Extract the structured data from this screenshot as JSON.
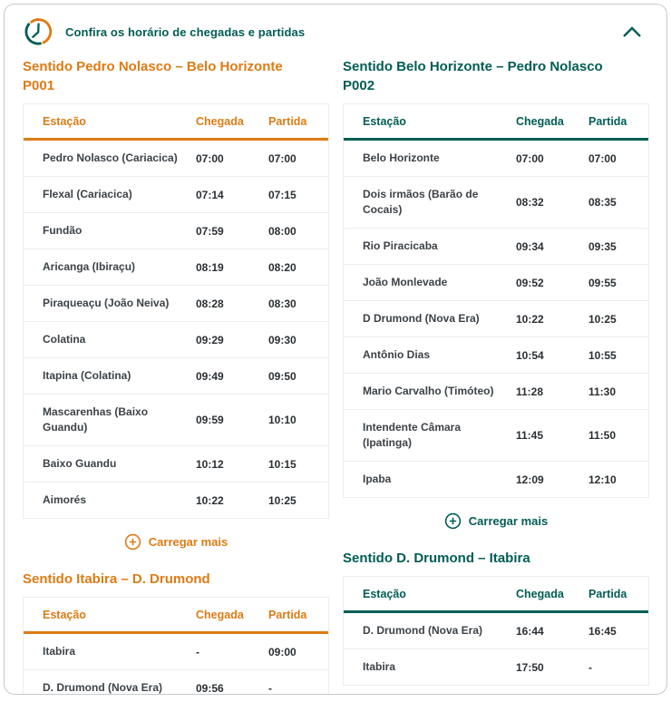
{
  "colors": {
    "orange": "#DD7B14",
    "teal": "#015D54"
  },
  "header": {
    "title": "Confira os horário de chegadas e partidas"
  },
  "table_columns": {
    "station": "Estação",
    "arrival": "Chegada",
    "departure": "Partida"
  },
  "load_more_label": "Carregar mais",
  "sections": [
    {
      "id": "p001",
      "theme": "orange",
      "column": "left",
      "title": "Sentido Pedro Nolasco – Belo Horizonte",
      "subtitle": "P001",
      "load_more": true,
      "rows": [
        {
          "station": "Pedro Nolasco (Cariacica)",
          "arrival": "07:00",
          "departure": "07:00"
        },
        {
          "station": "Flexal (Cariacica)",
          "arrival": "07:14",
          "departure": "07:15"
        },
        {
          "station": "Fundão",
          "arrival": "07:59",
          "departure": "08:00"
        },
        {
          "station": "Aricanga (Ibiraçu)",
          "arrival": "08:19",
          "departure": "08:20"
        },
        {
          "station": "Piraqueaçu (João Neiva)",
          "arrival": "08:28",
          "departure": "08:30"
        },
        {
          "station": "Colatina",
          "arrival": "09:29",
          "departure": "09:30"
        },
        {
          "station": "Itapina (Colatina)",
          "arrival": "09:49",
          "departure": "09:50"
        },
        {
          "station": "Mascarenhas (Baixo Guandu)",
          "arrival": "09:59",
          "departure": "10:10"
        },
        {
          "station": "Baixo Guandu",
          "arrival": "10:12",
          "departure": "10:15"
        },
        {
          "station": "Aimorés",
          "arrival": "10:22",
          "departure": "10:25"
        }
      ]
    },
    {
      "id": "p002",
      "theme": "teal",
      "column": "right",
      "title": "Sentido Belo Horizonte – Pedro Nolasco",
      "subtitle": "P002",
      "load_more": true,
      "rows": [
        {
          "station": "Belo Horizonte",
          "arrival": "07:00",
          "departure": "07:00"
        },
        {
          "station": "Dois irmãos (Barão de Cocais)",
          "arrival": "08:32",
          "departure": "08:35"
        },
        {
          "station": "Rio Piracicaba",
          "arrival": "09:34",
          "departure": "09:35"
        },
        {
          "station": "João Monlevade",
          "arrival": "09:52",
          "departure": "09:55"
        },
        {
          "station": "D Drumond (Nova Era)",
          "arrival": "10:22",
          "departure": "10:25"
        },
        {
          "station": "Antônio Dias",
          "arrival": "10:54",
          "departure": "10:55"
        },
        {
          "station": "Mario Carvalho (Timóteo)",
          "arrival": "11:28",
          "departure": "11:30"
        },
        {
          "station": "Intendente Câmara (Ipatinga)",
          "arrival": "11:45",
          "departure": "11:50"
        },
        {
          "station": "Ipaba",
          "arrival": "12:09",
          "departure": "12:10"
        }
      ]
    },
    {
      "id": "itabira-ddrumond",
      "theme": "orange",
      "column": "left",
      "title": "Sentido Itabira – D. Drumond",
      "load_more": false,
      "rows": [
        {
          "station": "Itabira",
          "arrival": "-",
          "departure": "09:00"
        },
        {
          "station": "D. Drumond (Nova Era)",
          "arrival": "09:56",
          "departure": "-"
        }
      ]
    },
    {
      "id": "ddrumond-itabira",
      "theme": "teal",
      "column": "right",
      "title": "Sentido D. Drumond – Itabira",
      "load_more": false,
      "rows": [
        {
          "station": "D. Drumond (Nova Era)",
          "arrival": "16:44",
          "departure": "16:45"
        },
        {
          "station": "Itabira",
          "arrival": "17:50",
          "departure": "-"
        }
      ]
    }
  ]
}
